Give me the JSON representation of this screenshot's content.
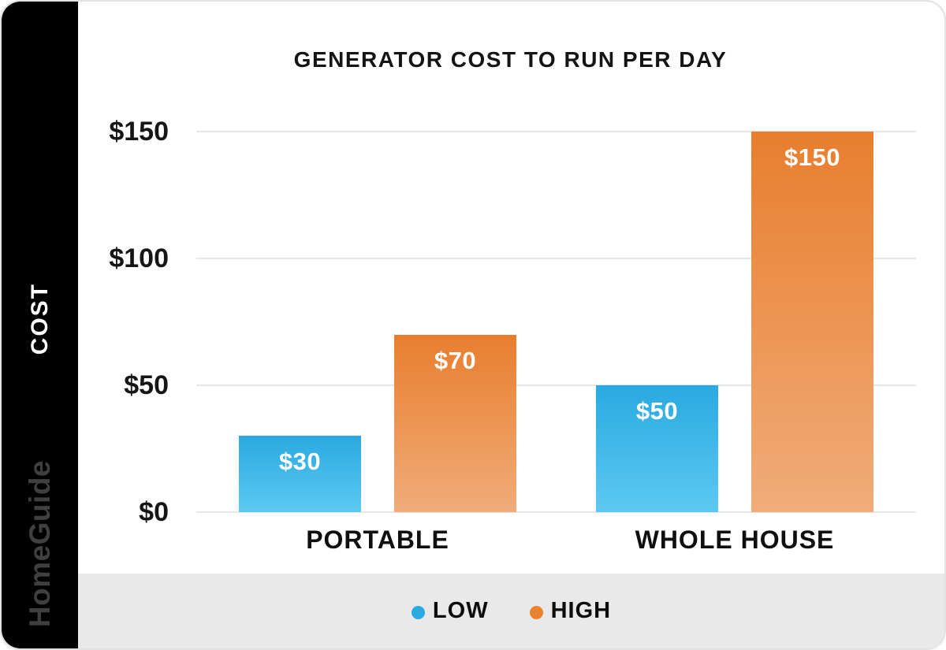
{
  "sidebar": {
    "axis_title": "COST",
    "brand": "HomeGuide"
  },
  "chart_data": {
    "type": "bar",
    "title": "GENERATOR COST TO RUN PER DAY",
    "xlabel": "",
    "ylabel": "COST",
    "categories": [
      "PORTABLE",
      "WHOLE HOUSE"
    ],
    "series": [
      {
        "name": "LOW",
        "values": [
          30,
          50
        ],
        "color_top": "#2aa9e0",
        "color_bottom": "#5cc9f3"
      },
      {
        "name": "HIGH",
        "values": [
          70,
          150
        ],
        "color_top": "#e87e2e",
        "color_bottom": "#f1ac79"
      }
    ],
    "ylim": [
      0,
      150
    ],
    "yticks": [
      0,
      50,
      100,
      150
    ],
    "ytick_labels": [
      "$0",
      "$50",
      "$100",
      "$150"
    ],
    "value_prefix": "$",
    "bar_value_labels": [
      [
        "$30",
        "$50"
      ],
      [
        "$70",
        "$150"
      ]
    ],
    "grid": true,
    "legend_position": "bottom"
  },
  "legend": {
    "items": [
      {
        "label": "LOW",
        "color": "#29abe2"
      },
      {
        "label": "HIGH",
        "color": "#e8832f"
      }
    ]
  },
  "colors": {
    "sidebar_bg": "#000000",
    "footer_bg": "#e9e9e9",
    "gridline": "#e7e7e7",
    "title_text": "#141414",
    "brand_text": "#3f3f3f"
  }
}
